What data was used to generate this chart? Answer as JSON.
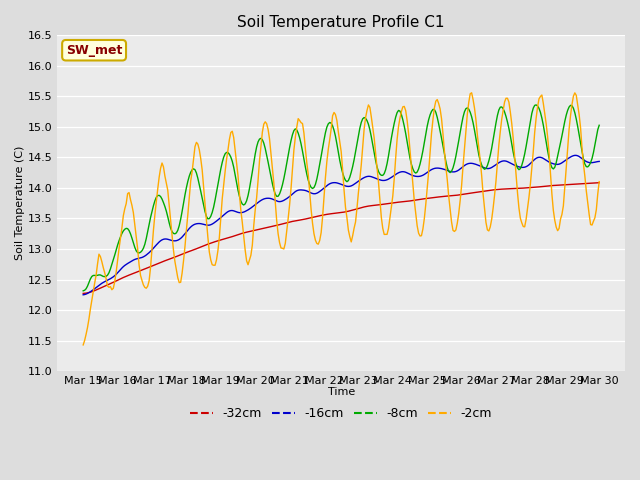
{
  "title": "Soil Temperature Profile C1",
  "xlabel": "Time",
  "ylabel": "Soil Temperature (C)",
  "ylim": [
    11.0,
    16.5
  ],
  "yticks": [
    11.0,
    11.5,
    12.0,
    12.5,
    13.0,
    13.5,
    14.0,
    14.5,
    15.0,
    15.5,
    16.0,
    16.5
  ],
  "series": [
    {
      "label": "-32cm",
      "color": "#cc0000"
    },
    {
      "label": "-16cm",
      "color": "#0000cc"
    },
    {
      "label": "-8cm",
      "color": "#00aa00"
    },
    {
      "label": "-2cm",
      "color": "#ffaa00"
    }
  ],
  "annotation_text": "SW_met",
  "annotation_text_color": "#880000",
  "annotation_bg": "#ffffdd",
  "annotation_edge": "#ccaa00",
  "bg_color": "#dddddd",
  "plot_bg": "#ebebeb",
  "grid_color": "#ffffff",
  "title_fontsize": 11,
  "axis_fontsize": 8,
  "legend_fontsize": 9
}
